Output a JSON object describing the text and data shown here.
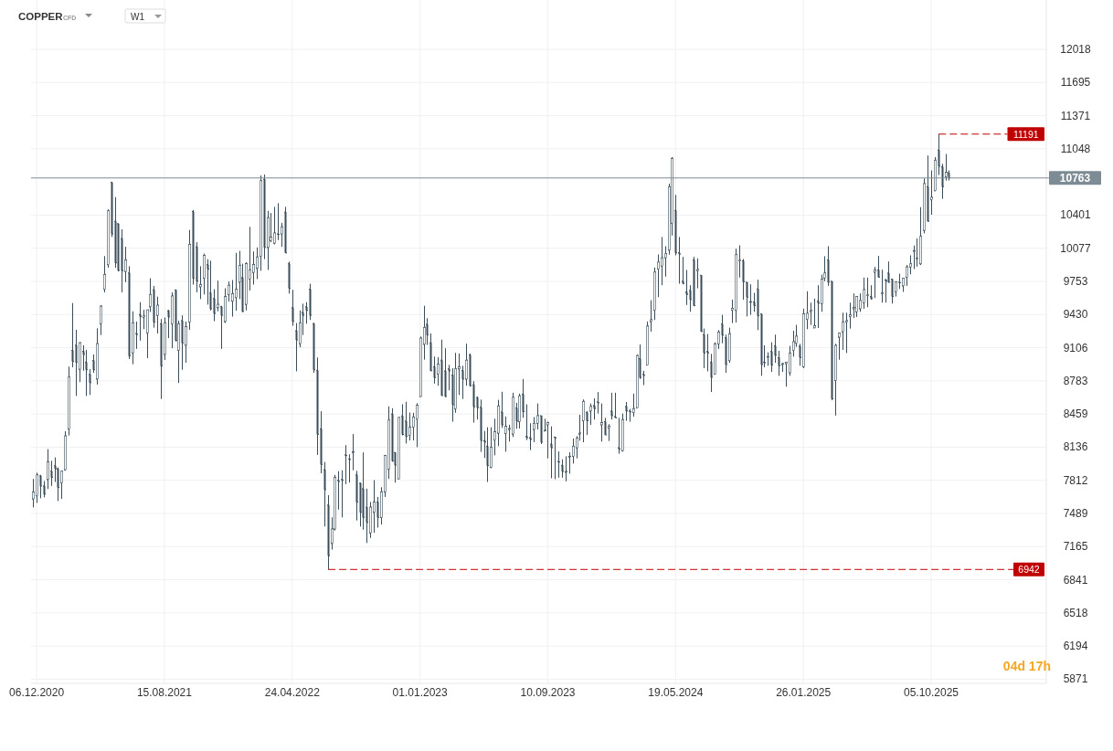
{
  "chart_data": {
    "type": "candlestick",
    "title": "COPPER",
    "subtitle": "CFD",
    "annotations": [
      "W1",
      "04d 17h"
    ],
    "color": "#3b4d58",
    "grid": true,
    "xlim": [
      "2020-11-25",
      "2026-05-20"
    ],
    "ylim": [
      5830,
      12500
    ],
    "xticks": [
      {
        "value": "2020-12-06",
        "label": "06.12.2020"
      },
      {
        "value": "2021-08-15",
        "label": "15.08.2021"
      },
      {
        "value": "2022-04-24",
        "label": "24.04.2022"
      },
      {
        "value": "2023-01-01",
        "label": "01.01.2023"
      },
      {
        "value": "2023-09-10",
        "label": "10.09.2023"
      },
      {
        "value": "2024-05-19",
        "label": "19.05.2024"
      },
      {
        "value": "2025-01-26",
        "label": "26.01.2025"
      },
      {
        "value": "2025-10-05",
        "label": "05.10.2025"
      }
    ],
    "yticks": [
      5871,
      6194,
      6518,
      6841,
      7165,
      7489,
      7812,
      8136,
      8459,
      8783,
      9106,
      9430,
      9753,
      10077,
      10401,
      11048,
      11371,
      11695,
      12018
    ],
    "ref_lines": [
      {
        "axis": "y",
        "value": 11191,
        "label": "11191",
        "color": "#c00000",
        "line_style": "dashed"
      },
      {
        "axis": "y",
        "value": 6942,
        "label": "6942",
        "color": "#c00000",
        "line_style": "dashed"
      },
      {
        "axis": "y",
        "value": 10763,
        "label": "10763",
        "color": "#7d8b94",
        "line_style": "solid"
      }
    ],
    "x": [
      "2020-11-29",
      "2020-12-06",
      "2020-12-13",
      "2020-12-20",
      "2020-12-27",
      "2021-01-03",
      "2021-01-10",
      "2021-01-17",
      "2021-01-24",
      "2021-01-31",
      "2021-02-07",
      "2021-02-14",
      "2021-02-21",
      "2021-02-28",
      "2021-03-07",
      "2021-03-14",
      "2021-03-21",
      "2021-03-28",
      "2021-04-04",
      "2021-04-11",
      "2021-04-18",
      "2021-04-25",
      "2021-05-02",
      "2021-05-09",
      "2021-05-16",
      "2021-05-23",
      "2021-05-30",
      "2021-06-06",
      "2021-06-13",
      "2021-06-20",
      "2021-06-27",
      "2021-07-04",
      "2021-07-11",
      "2021-07-18",
      "2021-07-25",
      "2021-08-01",
      "2021-08-08",
      "2021-08-15",
      "2021-08-22",
      "2021-08-29",
      "2021-09-05",
      "2021-09-12",
      "2021-09-19",
      "2021-09-26",
      "2021-10-03",
      "2021-10-10",
      "2021-10-17",
      "2021-10-24",
      "2021-10-31",
      "2021-11-07",
      "2021-11-14",
      "2021-11-21",
      "2021-11-28",
      "2021-12-05",
      "2021-12-12",
      "2021-12-19",
      "2021-12-26",
      "2022-01-02",
      "2022-01-09",
      "2022-01-16",
      "2022-01-23",
      "2022-01-30",
      "2022-02-06",
      "2022-02-13",
      "2022-02-20",
      "2022-02-27",
      "2022-03-06",
      "2022-03-13",
      "2022-03-20",
      "2022-03-27",
      "2022-04-03",
      "2022-04-10",
      "2022-04-17",
      "2022-04-24",
      "2022-05-01",
      "2022-05-08",
      "2022-05-15",
      "2022-05-22",
      "2022-05-29",
      "2022-06-05",
      "2022-06-12",
      "2022-06-19",
      "2022-06-26",
      "2022-07-03",
      "2022-07-10",
      "2022-07-17",
      "2022-07-24",
      "2022-07-31",
      "2022-08-07",
      "2022-08-14",
      "2022-08-21",
      "2022-08-28",
      "2022-09-04",
      "2022-09-11",
      "2022-09-18",
      "2022-09-25",
      "2022-10-02",
      "2022-10-09",
      "2022-10-16",
      "2022-10-23",
      "2022-10-30",
      "2022-11-06",
      "2022-11-13",
      "2022-11-20",
      "2022-11-27",
      "2022-12-04",
      "2022-12-11",
      "2022-12-18",
      "2022-12-25",
      "2023-01-01",
      "2023-01-08",
      "2023-01-15",
      "2023-01-22",
      "2023-01-29",
      "2023-02-05",
      "2023-02-12",
      "2023-02-19",
      "2023-02-26",
      "2023-03-05",
      "2023-03-12",
      "2023-03-19",
      "2023-03-26",
      "2023-04-02",
      "2023-04-09",
      "2023-04-16",
      "2023-04-23",
      "2023-04-30",
      "2023-05-07",
      "2023-05-14",
      "2023-05-21",
      "2023-05-28",
      "2023-06-04",
      "2023-06-11",
      "2023-06-18",
      "2023-06-25",
      "2023-07-02",
      "2023-07-09",
      "2023-07-16",
      "2023-07-23",
      "2023-07-30",
      "2023-08-06",
      "2023-08-13",
      "2023-08-20",
      "2023-08-27",
      "2023-09-03",
      "2023-09-10",
      "2023-09-17",
      "2023-09-24",
      "2023-10-01",
      "2023-10-08",
      "2023-10-15",
      "2023-10-22",
      "2023-10-29",
      "2023-11-05",
      "2023-11-12",
      "2023-11-19",
      "2023-11-26",
      "2023-12-03",
      "2023-12-10",
      "2023-12-17",
      "2023-12-24",
      "2023-12-31",
      "2024-01-07",
      "2024-01-14",
      "2024-01-21",
      "2024-01-28",
      "2024-02-04",
      "2024-02-11",
      "2024-02-18",
      "2024-02-25",
      "2024-03-03",
      "2024-03-10",
      "2024-03-17",
      "2024-03-24",
      "2024-03-31",
      "2024-04-07",
      "2024-04-14",
      "2024-04-21",
      "2024-04-28",
      "2024-05-05",
      "2024-05-12",
      "2024-05-19",
      "2024-05-26",
      "2024-06-02",
      "2024-06-09",
      "2024-06-16",
      "2024-06-23",
      "2024-06-30",
      "2024-07-07",
      "2024-07-14",
      "2024-07-21",
      "2024-07-28",
      "2024-08-04",
      "2024-08-11",
      "2024-08-18",
      "2024-08-25",
      "2024-09-01",
      "2024-09-08",
      "2024-09-15",
      "2024-09-22",
      "2024-09-29",
      "2024-10-06",
      "2024-10-13",
      "2024-10-20",
      "2024-10-27",
      "2024-11-03",
      "2024-11-10",
      "2024-11-17",
      "2024-11-24",
      "2024-12-01",
      "2024-12-08",
      "2024-12-15",
      "2024-12-22",
      "2024-12-29",
      "2025-01-05",
      "2025-01-12",
      "2025-01-19",
      "2025-01-26",
      "2025-02-02",
      "2025-02-09",
      "2025-02-16",
      "2025-02-23",
      "2025-03-02",
      "2025-03-09",
      "2025-03-16",
      "2025-03-23",
      "2025-03-30",
      "2025-04-06",
      "2025-04-13",
      "2025-04-20",
      "2025-04-27",
      "2025-05-04",
      "2025-05-11",
      "2025-05-18",
      "2025-05-25",
      "2025-06-01",
      "2025-06-08",
      "2025-06-15",
      "2025-06-22",
      "2025-06-29",
      "2025-07-06",
      "2025-07-13",
      "2025-07-20",
      "2025-07-27",
      "2025-08-03",
      "2025-08-10",
      "2025-08-17",
      "2025-08-24",
      "2025-08-31",
      "2025-09-07",
      "2025-09-14",
      "2025-09-21",
      "2025-09-28",
      "2025-10-05",
      "2025-10-12",
      "2025-10-19",
      "2025-10-26",
      "2025-11-02",
      "2025-11-09"
    ],
    "ohlc": [
      [
        7631,
        7826,
        7547,
        7697
      ],
      [
        7661,
        7886,
        7592,
        7865
      ],
      [
        7856,
        7865,
        7637,
        7757
      ],
      [
        7757,
        7805,
        7646,
        7676
      ],
      [
        7820,
        8117,
        7727,
        7991
      ],
      [
        7901,
        8003,
        7757,
        7841
      ],
      [
        7955,
        8036,
        7796,
        7925
      ],
      [
        7925,
        7937,
        7610,
        7742
      ],
      [
        7787,
        7907,
        7631,
        7901
      ],
      [
        7916,
        8291,
        7907,
        8246
      ],
      [
        8315,
        8921,
        8249,
        8819
      ],
      [
        9080,
        9542,
        8915,
        8972
      ],
      [
        9131,
        9281,
        8636,
        8963
      ],
      [
        8897,
        9161,
        8771,
        9155
      ],
      [
        9071,
        9131,
        8882,
        9041
      ],
      [
        8966,
        9086,
        8636,
        8891
      ],
      [
        8846,
        8897,
        8645,
        8765
      ],
      [
        8981,
        9041,
        8861,
        8891
      ],
      [
        8801,
        9296,
        8747,
        9146
      ],
      [
        9341,
        9521,
        9230,
        9512
      ],
      [
        9677,
        10001,
        9647,
        9821
      ],
      [
        9917,
        10457,
        9887,
        10442
      ],
      [
        10721,
        10721,
        10187,
        10217
      ],
      [
        10340,
        10577,
        9887,
        9935
      ],
      [
        10316,
        10322,
        9851,
        9860
      ],
      [
        10172,
        10262,
        9647,
        9857
      ],
      [
        9851,
        10091,
        9746,
        9962
      ],
      [
        9836,
        9902,
        8996,
        9026
      ],
      [
        9056,
        9461,
        8945,
        9350
      ],
      [
        9245,
        9362,
        9095,
        9236
      ],
      [
        9431,
        9551,
        9176,
        9410
      ],
      [
        9401,
        9476,
        9287,
        9416
      ],
      [
        9251,
        9476,
        9005,
        9476
      ],
      [
        9506,
        9785,
        9455,
        9626
      ],
      [
        9671,
        9710,
        9302,
        9356
      ],
      [
        9422,
        9605,
        9245,
        9521
      ],
      [
        9341,
        9386,
        8606,
        8927
      ],
      [
        9041,
        9401,
        8987,
        9350
      ],
      [
        9467,
        9476,
        9200,
        9407
      ],
      [
        9341,
        9647,
        9101,
        9611
      ],
      [
        9671,
        9671,
        9167,
        9176
      ],
      [
        9080,
        9371,
        8762,
        9341
      ],
      [
        9371,
        9422,
        8891,
        9152
      ],
      [
        9131,
        9362,
        8960,
        9311
      ],
      [
        9356,
        10256,
        9281,
        10115
      ],
      [
        10436,
        10451,
        9722,
        9782
      ],
      [
        10091,
        10136,
        9647,
        9755
      ],
      [
        9701,
        9902,
        9581,
        9722
      ],
      [
        9785,
        10025,
        9626,
        10007
      ],
      [
        9917,
        9971,
        9527,
        9872
      ],
      [
        9641,
        9956,
        9470,
        9485
      ],
      [
        9587,
        9677,
        9365,
        9440
      ],
      [
        9497,
        9761,
        9461,
        9530
      ],
      [
        9506,
        9515,
        9095,
        9422
      ],
      [
        9362,
        9686,
        9347,
        9605
      ],
      [
        9626,
        9752,
        9557,
        9716
      ],
      [
        9560,
        9767,
        9410,
        9632
      ],
      [
        9596,
        10031,
        9467,
        9677
      ],
      [
        9746,
        10052,
        9581,
        9911
      ],
      [
        9791,
        9926,
        9452,
        9461
      ],
      [
        9530,
        9941,
        9470,
        9926
      ],
      [
        9776,
        10286,
        9665,
        9866
      ],
      [
        9842,
        10046,
        9722,
        9917
      ],
      [
        9881,
        10085,
        9776,
        9992
      ],
      [
        10001,
        10787,
        9857,
        10736
      ],
      [
        10751,
        10796,
        9971,
        10085
      ],
      [
        10085,
        10442,
        9866,
        10376
      ],
      [
        10151,
        10421,
        10136,
        10187
      ],
      [
        10127,
        10481,
        10115,
        10226
      ],
      [
        10217,
        10517,
        10157,
        10211
      ],
      [
        10217,
        10325,
        10091,
        10286
      ],
      [
        10430,
        10481,
        10031,
        10031
      ],
      [
        9926,
        9947,
        9635,
        9686
      ],
      [
        9497,
        9671,
        9320,
        9362
      ],
      [
        9272,
        9347,
        8876,
        9182
      ],
      [
        9146,
        9470,
        9110,
        9350
      ],
      [
        9452,
        9536,
        9230,
        9422
      ],
      [
        9506,
        9551,
        9341,
        9470
      ],
      [
        9677,
        9731,
        9377,
        9422
      ],
      [
        9341,
        9350,
        8861,
        8891
      ],
      [
        8885,
        9011,
        8060,
        8261
      ],
      [
        8315,
        8486,
        7880,
        7967
      ],
      [
        7916,
        7991,
        7361,
        7721
      ],
      [
        7571,
        7667,
        6942,
        7076
      ],
      [
        7196,
        7451,
        7136,
        7337
      ],
      [
        7337,
        7865,
        7322,
        7841
      ],
      [
        7811,
        7901,
        7526,
        7802
      ],
      [
        7820,
        7910,
        7450,
        7814
      ],
      [
        8060,
        8156,
        7775,
        8054
      ],
      [
        8021,
        8066,
        7790,
        8015
      ],
      [
        8084,
        8264,
        7910,
        8090
      ],
      [
        7865,
        7904,
        7420,
        7600
      ],
      [
        7784,
        7790,
        7360,
        7500
      ],
      [
        7730,
        8084,
        7330,
        7450
      ],
      [
        7550,
        7730,
        7200,
        7400
      ],
      [
        7300,
        7600,
        7250,
        7550
      ],
      [
        7500,
        7814,
        7300,
        7600
      ],
      [
        7600,
        7650,
        7350,
        7450
      ],
      [
        7450,
        7745,
        7380,
        7700
      ],
      [
        7700,
        8060,
        7650,
        8054
      ],
      [
        7919,
        8534,
        7826,
        8400
      ],
      [
        8460,
        8516,
        7994,
        8000
      ],
      [
        8084,
        8084,
        7790,
        7960
      ],
      [
        7826,
        8426,
        7826,
        8426
      ],
      [
        8440,
        8555,
        8250,
        8260
      ],
      [
        8390,
        8579,
        8171,
        8240
      ],
      [
        8250,
        8474,
        8201,
        8330
      ],
      [
        8330,
        8471,
        8201,
        8430
      ],
      [
        8410,
        8564,
        8135,
        8545
      ],
      [
        8630,
        9215,
        8630,
        9200
      ],
      [
        9140,
        9515,
        8990,
        9305
      ],
      [
        9335,
        9395,
        9134,
        9230
      ],
      [
        9155,
        9245,
        8879,
        8880
      ],
      [
        8920,
        9020,
        8756,
        8815
      ],
      [
        8850,
        9014,
        8735,
        8945
      ],
      [
        8985,
        9185,
        8636,
        8640
      ],
      [
        8880,
        9101,
        8624,
        8630
      ],
      [
        8900,
        8939,
        8690,
        8880
      ],
      [
        8840,
        8906,
        8384,
        8550
      ],
      [
        8510,
        9056,
        8471,
        8900
      ],
      [
        8900,
        9050,
        8645,
        8920
      ],
      [
        8885,
        8930,
        8606,
        8800
      ],
      [
        8800,
        9146,
        8735,
        8985
      ],
      [
        9035,
        9050,
        8726,
        8735
      ],
      [
        8745,
        8780,
        8375,
        8530
      ],
      [
        8620,
        8630,
        8405,
        8520
      ],
      [
        8525,
        8600,
        8090,
        8200
      ],
      [
        8200,
        8294,
        8030,
        8185
      ],
      [
        8145,
        8330,
        7796,
        7955
      ],
      [
        7940,
        8330,
        7930,
        8135
      ],
      [
        8205,
        8413,
        8056,
        8285
      ],
      [
        8273,
        8598,
        8145,
        8538
      ],
      [
        8479,
        8676,
        8324,
        8354
      ],
      [
        8270,
        8435,
        8092,
        8339
      ],
      [
        8309,
        8354,
        8190,
        8318
      ],
      [
        8264,
        8667,
        8235,
        8622
      ],
      [
        8518,
        8568,
        8315,
        8390
      ],
      [
        8384,
        8658,
        8318,
        8637
      ],
      [
        8652,
        8801,
        8422,
        8482
      ],
      [
        8241,
        8553,
        8205,
        8229
      ],
      [
        8229,
        8369,
        8107,
        8211
      ],
      [
        8309,
        8429,
        8184,
        8369
      ],
      [
        8369,
        8562,
        8309,
        8443
      ],
      [
        8443,
        8443,
        8166,
        8184
      ],
      [
        8294,
        8413,
        8294,
        8300
      ],
      [
        8354,
        8384,
        8026,
        8375
      ],
      [
        8166,
        8339,
        7832,
        8130
      ],
      [
        8235,
        8235,
        7823,
        8225
      ],
      [
        7996,
        8094,
        7838,
        7990
      ],
      [
        7958,
        8017,
        7838,
        7898
      ],
      [
        7892,
        8047,
        7802,
        7898
      ],
      [
        8041,
        8086,
        7877,
        8047
      ],
      [
        8047,
        8220,
        7975,
        8145
      ],
      [
        8130,
        8243,
        8026,
        8225
      ],
      [
        8264,
        8452,
        8199,
        8273
      ],
      [
        8393,
        8601,
        8184,
        8583
      ],
      [
        8473,
        8488,
        8255,
        8393
      ],
      [
        8488,
        8562,
        8354,
        8533
      ],
      [
        8542,
        8613,
        8405,
        8512
      ],
      [
        8577,
        8673,
        8464,
        8568
      ],
      [
        8354,
        8562,
        8190,
        8375
      ],
      [
        8384,
        8422,
        8255,
        8255
      ],
      [
        8324,
        8360,
        8196,
        8339
      ],
      [
        8488,
        8667,
        8405,
        8443
      ],
      [
        8434,
        8667,
        8422,
        8422
      ],
      [
        8130,
        8422,
        8071,
        8115
      ],
      [
        8101,
        8464,
        8092,
        8404
      ],
      [
        8533,
        8577,
        8393,
        8488
      ],
      [
        8488,
        8509,
        8384,
        8479
      ],
      [
        8473,
        8658,
        8434,
        8512
      ],
      [
        8518,
        9039,
        8518,
        9030
      ],
      [
        9000,
        9137,
        8801,
        8816
      ],
      [
        8846,
        8881,
        8741,
        8836
      ],
      [
        8936,
        9362,
        8936,
        9317
      ],
      [
        9362,
        9570,
        9263,
        9380
      ],
      [
        9472,
        9889,
        9377,
        9844
      ],
      [
        9874,
        10017,
        9600,
        9942
      ],
      [
        9904,
        10187,
        9716,
        9984
      ],
      [
        9984,
        10097,
        9800,
        10023
      ],
      [
        10059,
        10708,
        10014,
        10678
      ],
      [
        10321,
        10967,
        10201,
        10955
      ],
      [
        10446,
        10598,
        10008,
        10032
      ],
      [
        10032,
        10187,
        9731,
        10020
      ],
      [
        9755,
        9993,
        9725,
        9734
      ],
      [
        9651,
        9865,
        9523,
        9627
      ],
      [
        9666,
        9716,
        9457,
        9576
      ],
      [
        9963,
        9993,
        9511,
        9517
      ],
      [
        9859,
        9978,
        9686,
        9870
      ],
      [
        9814,
        9814,
        9263,
        9263
      ],
      [
        9234,
        9293,
        8906,
        9055
      ],
      [
        9070,
        9240,
        8876,
        9055
      ],
      [
        8966,
        9046,
        8674,
        8817
      ],
      [
        8847,
        9159,
        8847,
        9144
      ],
      [
        9144,
        9278,
        9094,
        9258
      ],
      [
        9338,
        9427,
        9150,
        9228
      ],
      [
        9204,
        9234,
        8861,
        8942
      ],
      [
        8981,
        9302,
        8960,
        9243
      ],
      [
        9472,
        9576,
        9347,
        9490
      ],
      [
        9472,
        10073,
        9353,
        10014
      ],
      [
        9954,
        10106,
        9791,
        9960
      ],
      [
        9954,
        9972,
        9576,
        9749
      ],
      [
        9746,
        9746,
        9412,
        9600
      ],
      [
        9555,
        9725,
        9427,
        9555
      ],
      [
        9552,
        9642,
        9457,
        9517
      ],
      [
        9680,
        9770,
        9278,
        9418
      ],
      [
        9436,
        9436,
        8832,
        8942
      ],
      [
        8966,
        9130,
        8915,
        8960
      ],
      [
        9019,
        9061,
        8930,
        9019
      ],
      [
        9070,
        9159,
        8870,
        8936
      ],
      [
        9124,
        9234,
        8960,
        9031
      ],
      [
        9010,
        9076,
        8832,
        8930
      ],
      [
        8942,
        8960,
        8870,
        8951
      ],
      [
        8951,
        8966,
        8727,
        8966
      ],
      [
        8862,
        9124,
        8832,
        9055
      ],
      [
        9079,
        9272,
        9019,
        9165
      ],
      [
        9150,
        9329,
        9115,
        9219
      ],
      [
        9121,
        9144,
        8930,
        9010
      ],
      [
        8921,
        9487,
        8906,
        9436
      ],
      [
        9383,
        9657,
        9287,
        9442
      ],
      [
        9460,
        9546,
        9329,
        9470
      ],
      [
        9300,
        9585,
        9299,
        9320
      ],
      [
        9561,
        9716,
        9299,
        9540
      ],
      [
        9537,
        9820,
        9457,
        9776
      ],
      [
        9785,
        9999,
        9755,
        9835
      ],
      [
        9963,
        10097,
        9710,
        9746
      ],
      [
        9755,
        9755,
        8593,
        8608
      ],
      [
        8787,
        9144,
        8444,
        9129
      ],
      [
        9210,
        9249,
        8989,
        9249
      ],
      [
        9263,
        9448,
        9085,
        9359
      ],
      [
        9359,
        9448,
        9055,
        9370
      ],
      [
        9412,
        9546,
        9293,
        9427
      ],
      [
        9487,
        9636,
        9397,
        9500
      ],
      [
        9457,
        9606,
        9406,
        9606
      ],
      [
        9487,
        9636,
        9457,
        9567
      ],
      [
        9546,
        9791,
        9487,
        9674
      ],
      [
        9615,
        9791,
        9502,
        9621
      ],
      [
        9606,
        9716,
        9576,
        9585
      ],
      [
        9844,
        9895,
        9591,
        9865
      ],
      [
        9865,
        10002,
        9794,
        9794
      ],
      [
        9636,
        9868,
        9546,
        9640
      ],
      [
        9770,
        9776,
        9546,
        9755
      ],
      [
        9835,
        9948,
        9740,
        9746
      ],
      [
        9776,
        9776,
        9537,
        9606
      ],
      [
        9651,
        9755,
        9606,
        9749
      ],
      [
        9746,
        9829,
        9680,
        9740
      ],
      [
        9710,
        9785,
        9651,
        9785
      ],
      [
        9794,
        9913,
        9710,
        9895
      ],
      [
        9895,
        10008,
        9823,
        9925
      ],
      [
        10053,
        10103,
        9874,
        10053
      ],
      [
        9978,
        10172,
        9898,
        9978
      ],
      [
        9925,
        10478,
        9913,
        10193
      ],
      [
        10252,
        10758,
        10222,
        10708
      ],
      [
        10678,
        10982,
        10336,
        10341
      ],
      [
        10550,
        10836,
        10404,
        10574
      ],
      [
        10639,
        10967,
        10633,
        10937
      ],
      [
        11035,
        11191,
        10791,
        10877
      ],
      [
        10872,
        10901,
        10559,
        10678
      ],
      [
        10776,
        10997,
        10738,
        10818
      ],
      [
        10812,
        10836,
        10738,
        10763
      ]
    ]
  }
}
